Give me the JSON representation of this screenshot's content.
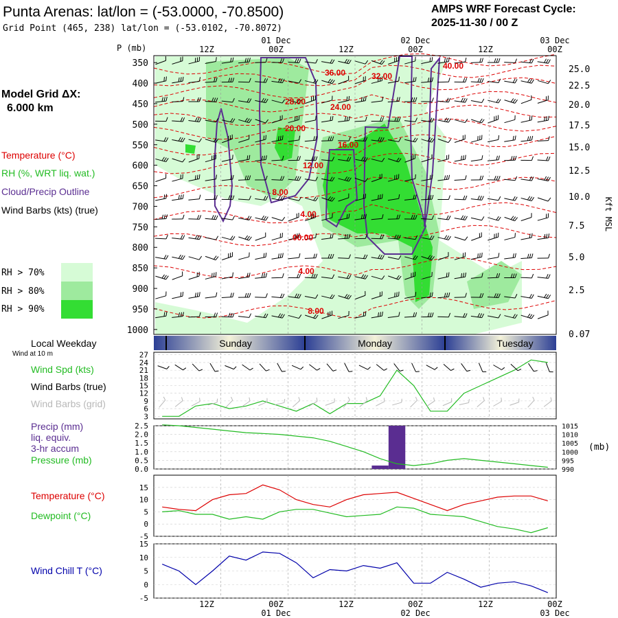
{
  "header": {
    "title": "Punta Arenas:  lat/lon = (-53.0000, -70.8500)",
    "grid_point": "Grid Point (465, 238) lat/lon = (-53.0102, -70.8072)",
    "cycle_label": "AMPS WRF Forecast Cycle:",
    "cycle_value": "2025-11-30 / 00  Z"
  },
  "colors": {
    "temperature": "#dd0000",
    "rh": "#22bb22",
    "cloud": "#5a2d91",
    "wind": "#000000",
    "wind_grid": "#b8b8b8",
    "wind_chill": "#0000aa",
    "precip_bar": "#5a2d91",
    "rh70": "#d6fbd6",
    "rh80": "#9eea9e",
    "rh90": "#33dd33"
  },
  "time_axis": {
    "top_dates": [
      "01 Dec",
      "02 Dec",
      "03 Dec"
    ],
    "top_hours": [
      "12Z",
      "00Z",
      "12Z",
      "00Z",
      "12Z",
      "00Z"
    ],
    "bottom_hours": [
      "12Z",
      "00Z",
      "12Z",
      "00Z",
      "12Z",
      "00Z"
    ],
    "bottom_dates": [
      "01 Dec",
      "02 Dec",
      "03 Dec"
    ]
  },
  "sounding": {
    "left": {
      "model_grid_label": "Model Grid ΔX:",
      "model_grid_value": "6.000 km",
      "temperature_label": "Temperature (°C)",
      "rh_label": "RH (%, WRT liq. wat.)",
      "cloud_label": "Cloud/Precip Outline",
      "wind_label": "Wind Barbs (kts) (true)",
      "rh70": "RH > 70%",
      "rh80": "RH > 80%",
      "rh90": "RH > 90%"
    },
    "pressure_header": "P (mb)",
    "pressure_ticks": [
      "350",
      "400",
      "450",
      "500",
      "550",
      "600",
      "650",
      "700",
      "750",
      "800",
      "850",
      "900",
      "950",
      "1000"
    ],
    "height_ticks": [
      "25.0",
      "22.5",
      "20.0",
      "17.5",
      "15.0",
      "12.5",
      "10.0",
      "7.5",
      "5.0",
      "2.5",
      "0.07"
    ],
    "height_axis_label": "Kft MSL",
    "temperature_labels": [
      "36.00",
      "32.00",
      "40.00",
      "28.00",
      "24.00",
      "20.00",
      "16.00",
      "12.00",
      "8.00",
      "4.00",
      "00.00",
      "4.00",
      "8.00"
    ]
  },
  "weekday_bar": {
    "label": "Local Weekday",
    "sublabel": "Wind at 10 m",
    "days": [
      "Sunday",
      "Monday",
      "Tuesday"
    ]
  },
  "chart_data": [
    {
      "type": "line",
      "title": "",
      "series": [
        {
          "name": "Wind Spd (kts)",
          "values": [
            3,
            3,
            7,
            8,
            6,
            7,
            9,
            7,
            5,
            8,
            4,
            8,
            8,
            11,
            21,
            15,
            5,
            5,
            12,
            15,
            18,
            21,
            25,
            24
          ]
        }
      ],
      "x_hours": [
        0,
        3,
        6,
        9,
        12,
        15,
        18,
        21,
        24,
        27,
        30,
        33,
        36,
        39,
        42,
        45,
        48,
        51,
        54,
        57,
        60,
        63,
        66,
        69
      ],
      "labels": {
        "wind_spd": "Wind Spd (kts)",
        "wind_barbs_true": "Wind Barbs (true)",
        "wind_barbs_grid": "Wind Barbs (grid)"
      },
      "yticks": [
        "27",
        "24",
        "21",
        "18",
        "15",
        "12",
        "9",
        "6",
        "3"
      ],
      "ylim": [
        3,
        27
      ]
    },
    {
      "type": "bar",
      "title": "",
      "series": [
        {
          "name": "Precip (mm)",
          "values": [
            0,
            0,
            0,
            0,
            0,
            0,
            0,
            0,
            0,
            0,
            0,
            0,
            0,
            0.2,
            2.5,
            0,
            0,
            0,
            0,
            0,
            0,
            0,
            0,
            0
          ]
        },
        {
          "name": "Pressure (mb)",
          "values": [
            1015.5,
            1015,
            1014,
            1013,
            1012,
            1011,
            1010.5,
            1010,
            1009,
            1008,
            1006,
            1003,
            1000,
            996,
            993,
            992,
            993,
            995,
            996,
            995,
            994,
            993,
            992,
            991
          ]
        }
      ],
      "x_hours": [
        0,
        3,
        6,
        9,
        12,
        15,
        18,
        21,
        24,
        27,
        30,
        33,
        36,
        39,
        42,
        45,
        48,
        51,
        54,
        57,
        60,
        63,
        66,
        69
      ],
      "labels": {
        "precip": "Precip (mm)",
        "liq": "liq. equiv.",
        "accum": "3-hr accum",
        "pressure": "Pressure (mb)",
        "right_unit": "(mb)"
      },
      "yticks_left": [
        "2.5",
        "2.0",
        "1.5",
        "1.0",
        "0.5",
        "0.0"
      ],
      "yticks_right": [
        "1015",
        "1010",
        "1005",
        "1000",
        "995",
        "990"
      ],
      "ylim": [
        0,
        2.5
      ],
      "ylim_right": [
        990,
        1015
      ]
    },
    {
      "type": "line",
      "title": "",
      "series": [
        {
          "name": "Temperature (°C)",
          "values": [
            7,
            6,
            5.5,
            10,
            12,
            12.5,
            16,
            14,
            10,
            8,
            7,
            10,
            12,
            12.5,
            13,
            10.5,
            8,
            5.5,
            8,
            9.5,
            11,
            11.5,
            11.5,
            9.5
          ]
        },
        {
          "name": "Dewpoint (°C)",
          "values": [
            5,
            5.5,
            4,
            4,
            2,
            3,
            2,
            5,
            6,
            6,
            4.5,
            3,
            3.5,
            4,
            7,
            6.5,
            4,
            3.5,
            3,
            1,
            -1,
            -2,
            -3.5,
            -1.5
          ]
        }
      ],
      "x_hours": [
        0,
        3,
        6,
        9,
        12,
        15,
        18,
        21,
        24,
        27,
        30,
        33,
        36,
        39,
        42,
        45,
        48,
        51,
        54,
        57,
        60,
        63,
        66,
        69
      ],
      "labels": {
        "temperature": "Temperature (°C)",
        "dewpoint": "Dewpoint (°C)"
      },
      "yticks": [
        "15",
        "10",
        "5",
        "0",
        "-5"
      ],
      "ylim": [
        -5,
        20
      ]
    },
    {
      "type": "line",
      "title": "",
      "series": [
        {
          "name": "Wind Chill T (°C)",
          "values": [
            7.5,
            5,
            0,
            5,
            10.5,
            9,
            12,
            11.5,
            8,
            2.5,
            5.5,
            5,
            7,
            6,
            8,
            0.5,
            0.5,
            4.5,
            2,
            -1,
            0.5,
            1,
            -0.5,
            -3
          ]
        }
      ],
      "x_hours": [
        0,
        3,
        6,
        9,
        12,
        15,
        18,
        21,
        24,
        27,
        30,
        33,
        36,
        39,
        42,
        45,
        48,
        51,
        54,
        57,
        60,
        63,
        66,
        69
      ],
      "labels": {
        "wind_chill": "Wind Chill T (°C)"
      },
      "yticks": [
        "15",
        "10",
        "5",
        "0",
        "-5"
      ],
      "ylim": [
        -5,
        15
      ]
    }
  ]
}
